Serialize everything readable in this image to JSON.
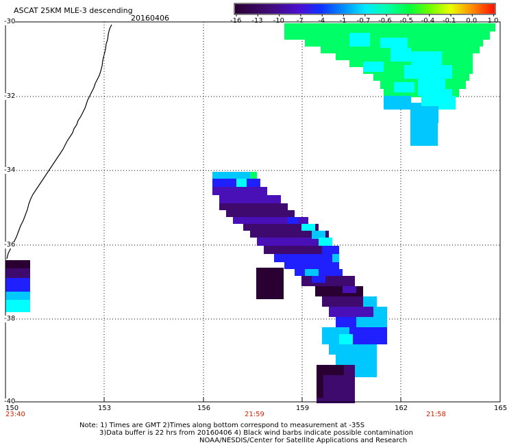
{
  "title": "ASCAT 25KM MLE-3 descending",
  "date": "20160406",
  "colorbar": {
    "labels": [
      "-16",
      "-13",
      "-10",
      "-7",
      "-4",
      "-1",
      "-0.7",
      "-0.6",
      "-0.5",
      "-0.4",
      "-0.1",
      "0.0",
      "1.0"
    ],
    "colors": [
      "#2a0033",
      "#3f0a6e",
      "#4a10b8",
      "#2020ff",
      "#0060ff",
      "#00a0ff",
      "#00e0ff",
      "#00ffc0",
      "#00ff60",
      "#60ff00",
      "#e0ff00",
      "#ffa000",
      "#ff2000"
    ]
  },
  "axes": {
    "x_ticks": [
      "150",
      "153",
      "156",
      "159",
      "162",
      "165"
    ],
    "y_ticks": [
      "-30",
      "-32",
      "-34",
      "-36",
      "-38",
      "-40"
    ]
  },
  "times": [
    "23:40",
    "21:59",
    "21:58"
  ],
  "notes": [
    "Note: 1) Times are GMT 2)Times along bottom correspond to measurement at -35S",
    "3)Data buffer is 22 hrs from 20160406 4) Black wind barbs indicate possible contamination",
    "NOAA/NESDIS/Center for Satellite Applications and Research"
  ],
  "colors": {
    "deep": "#2a0033",
    "purple": "#3f0a6e",
    "violet": "#4a10b8",
    "blue": "#2020ff",
    "cyan": "#00c8ff",
    "aqua": "#00ffff",
    "green": "#00ff66",
    "grid": "#000000"
  }
}
